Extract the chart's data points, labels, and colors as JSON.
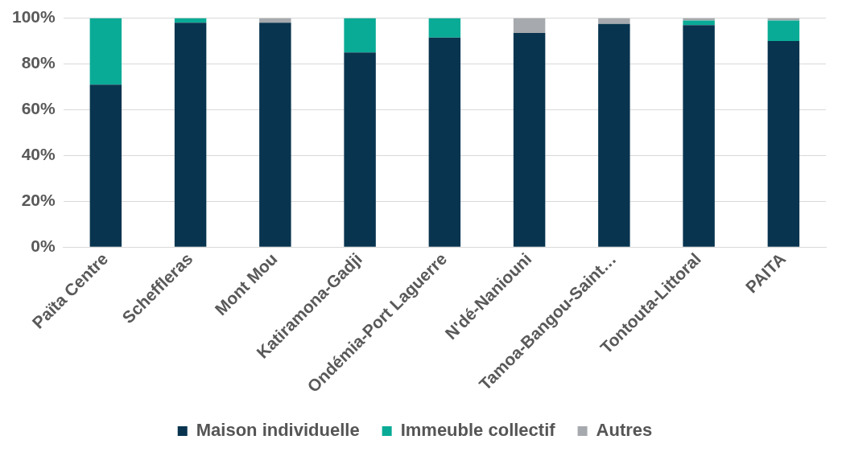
{
  "chart_data": {
    "type": "bar",
    "stacked": true,
    "categories": [
      "Païta Centre",
      "Scheffleras",
      "Mont Mou",
      "Katiramona-Gadji",
      "Ondémia-Port Laguerre",
      "N'dé-Naniouni",
      "Tamoa-Bangou-Saint…",
      "Tontouta-Littoral",
      "PAITA"
    ],
    "series": [
      {
        "name": "Maison individuelle",
        "color": "#08344f",
        "values": [
          71,
          98,
          98,
          85,
          91.5,
          93.5,
          97.5,
          97,
          90
        ]
      },
      {
        "name": "Immeuble collectif",
        "color": "#0aab96",
        "values": [
          29,
          2,
          null,
          15,
          8.5,
          null,
          null,
          2,
          9
        ]
      },
      {
        "name": "Autres",
        "color": "#a6a9ad",
        "values": [
          null,
          null,
          2,
          null,
          null,
          6.5,
          2.5,
          1,
          1
        ]
      }
    ],
    "ylim": [
      0,
      100
    ],
    "yticks": [
      {
        "value": 0,
        "label": "0%"
      },
      {
        "value": 20,
        "label": "20%"
      },
      {
        "value": 40,
        "label": "40%"
      },
      {
        "value": 60,
        "label": "60%"
      },
      {
        "value": 80,
        "label": "80%"
      },
      {
        "value": 100,
        "label": "100%"
      }
    ],
    "grid": "y",
    "legend": "bottom"
  }
}
